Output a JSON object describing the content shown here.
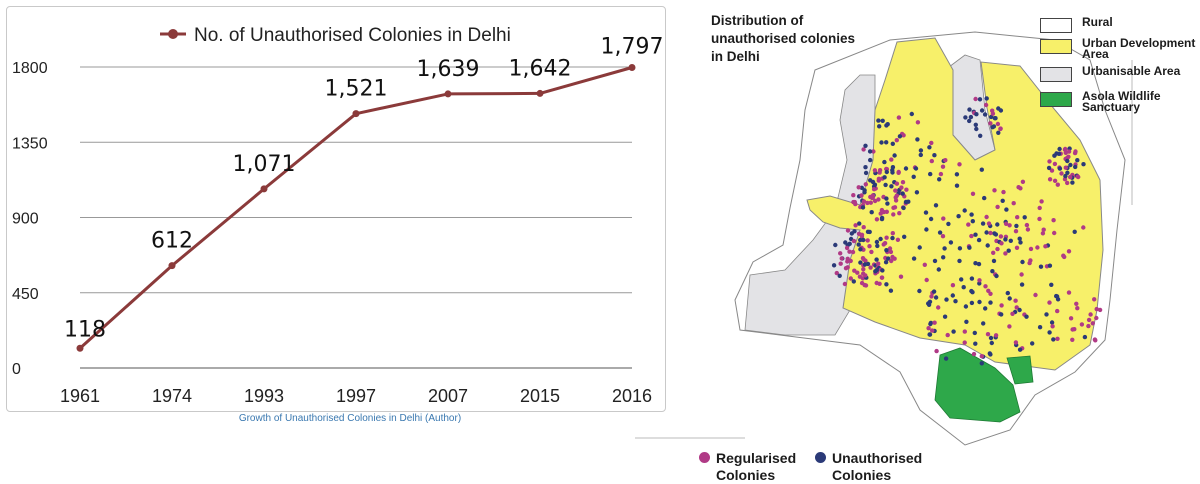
{
  "chart_data": {
    "type": "line",
    "categories": [
      "1961",
      "1974",
      "1993",
      "1997",
      "2007",
      "2015",
      "2016"
    ],
    "series": [
      {
        "name": "No. of Unauthorised Colonies in Delhi",
        "values": [
          118,
          612,
          1071,
          1521,
          1639,
          1642,
          1797
        ]
      }
    ],
    "data_labels": [
      "118",
      "612",
      "1,071",
      "1,521",
      "1,639",
      "1,642",
      "1,797"
    ],
    "yticks": [
      0,
      450,
      900,
      1350,
      1800
    ],
    "ylim": [
      0,
      1800
    ],
    "grid": true,
    "legend_position": "top",
    "line_color": "#8b3a3a",
    "caption": "Growth of Unauthorised Colonies in Delhi (Author)"
  },
  "map": {
    "title": "Distribution of unauthorised colonies in Delhi",
    "legend": [
      {
        "label": "Rural",
        "color": "#ffffff"
      },
      {
        "label": "Urban Development Area",
        "color": "#f7f06a"
      },
      {
        "label": "Urbanisable Area",
        "color": "#e3e3e6"
      },
      {
        "label": "Asola Wildlife Sanctuary",
        "color": "#2ea84a"
      }
    ],
    "dot_legend": [
      {
        "label": "Regularised Colonies",
        "color": "#b03a86"
      },
      {
        "label": "Unauthorised Colonies",
        "color": "#2b3a78"
      }
    ]
  }
}
